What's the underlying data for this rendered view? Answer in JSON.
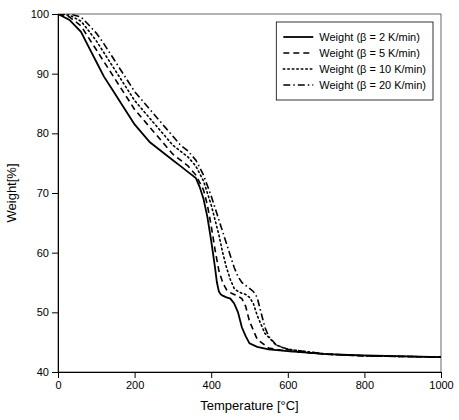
{
  "chart_data": {
    "type": "line",
    "xlabel": "Temperature [°C]",
    "ylabel": "Weight[%]",
    "xlim": [
      0,
      1000
    ],
    "ylim": [
      40,
      100
    ],
    "xticks": [
      0,
      200,
      400,
      600,
      800,
      1000
    ],
    "yticks": [
      40,
      50,
      60,
      70,
      80,
      90,
      100
    ],
    "grid": false,
    "legend": "top-right",
    "color": "#000000",
    "series": [
      {
        "name": "Weight (β = 2 K/min)",
        "line_style": "solid",
        "x": [
          0,
          30,
          60,
          80,
          100,
          120,
          140,
          160,
          180,
          200,
          220,
          240,
          260,
          280,
          300,
          320,
          340,
          360,
          370,
          380,
          390,
          400,
          410,
          415,
          420,
          425,
          430,
          440,
          450,
          460,
          470,
          480,
          490,
          500,
          520,
          550,
          600,
          700,
          800,
          1000
        ],
        "values": [
          100,
          99.0,
          97.0,
          94.5,
          92.0,
          89.5,
          87.5,
          85.5,
          83.5,
          81.5,
          80.0,
          78.5,
          77.5,
          76.5,
          75.5,
          74.5,
          73.5,
          72.5,
          71.0,
          69.0,
          66.0,
          62.0,
          57.5,
          55.0,
          53.5,
          53.0,
          52.8,
          52.5,
          52.3,
          51.5,
          50.0,
          47.5,
          46.0,
          44.8,
          44.2,
          43.8,
          43.5,
          43.0,
          42.8,
          42.5
        ]
      },
      {
        "name": "Weight (β = 5 K/min)",
        "line_style": "dashed",
        "x": [
          0,
          30,
          60,
          80,
          100,
          120,
          140,
          160,
          180,
          200,
          220,
          240,
          260,
          280,
          300,
          320,
          340,
          360,
          380,
          390,
          400,
          410,
          420,
          430,
          440,
          450,
          460,
          470,
          480,
          490,
          500,
          520,
          550,
          600,
          700,
          800,
          1000
        ],
        "values": [
          100,
          99.5,
          98.0,
          96.0,
          94.0,
          92.0,
          90.0,
          88.0,
          86.0,
          84.0,
          82.5,
          81.0,
          79.5,
          78.0,
          76.5,
          75.5,
          74.5,
          73.0,
          70.5,
          68.0,
          64.5,
          60.5,
          57.0,
          55.0,
          53.8,
          53.3,
          53.0,
          52.7,
          52.3,
          51.0,
          48.5,
          45.5,
          44.0,
          43.5,
          43.0,
          42.7,
          42.5
        ]
      },
      {
        "name": "Weight (β = 10 K/min)",
        "line_style": "dotted",
        "x": [
          0,
          30,
          60,
          80,
          100,
          120,
          140,
          160,
          180,
          200,
          220,
          240,
          260,
          280,
          300,
          320,
          340,
          360,
          380,
          400,
          420,
          430,
          440,
          450,
          460,
          470,
          480,
          490,
          500,
          510,
          520,
          540,
          570,
          600,
          700,
          800,
          1000
        ],
        "values": [
          100,
          99.8,
          98.8,
          97.2,
          95.5,
          93.5,
          91.5,
          89.5,
          87.5,
          85.5,
          84.0,
          82.5,
          81.0,
          79.5,
          78.0,
          77.0,
          76.0,
          74.5,
          72.0,
          68.0,
          63.0,
          60.0,
          57.5,
          55.5,
          54.0,
          53.5,
          53.2,
          53.0,
          52.5,
          51.5,
          49.5,
          46.5,
          44.5,
          43.8,
          43.0,
          42.7,
          42.5
        ]
      },
      {
        "name": "Weight (β = 20 K/min)",
        "line_style": "dashdot",
        "x": [
          0,
          30,
          60,
          80,
          100,
          120,
          140,
          160,
          180,
          200,
          220,
          240,
          260,
          280,
          300,
          320,
          340,
          360,
          380,
          400,
          420,
          440,
          460,
          470,
          480,
          490,
          500,
          510,
          520,
          530,
          540,
          550,
          570,
          600,
          700,
          800,
          1000
        ],
        "values": [
          100,
          100,
          99.5,
          98.2,
          96.8,
          95.0,
          93.0,
          91.0,
          89.0,
          87.0,
          85.5,
          84.0,
          82.5,
          81.0,
          79.5,
          78.0,
          77.0,
          75.5,
          73.0,
          69.5,
          65.5,
          61.5,
          57.5,
          56.0,
          55.0,
          54.5,
          54.0,
          53.5,
          52.5,
          50.0,
          47.5,
          46.0,
          44.5,
          43.8,
          43.0,
          42.7,
          42.5
        ]
      }
    ]
  }
}
